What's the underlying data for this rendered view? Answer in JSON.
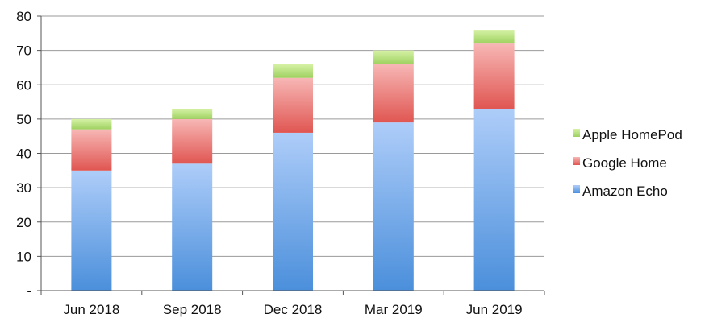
{
  "chart_data": {
    "type": "bar",
    "stacked": true,
    "categories": [
      "Jun 2018",
      "Sep 2018",
      "Dec 2018",
      "Mar 2019",
      "Jun 2019"
    ],
    "series": [
      {
        "name": "Amazon Echo",
        "values": [
          35,
          37,
          46,
          49,
          53
        ],
        "color_top": "#aecdf9",
        "color_bottom": "#4b8fdb"
      },
      {
        "name": "Google Home",
        "values": [
          12,
          13,
          16,
          17,
          19
        ],
        "color_top": "#f7b7b5",
        "color_bottom": "#e05652"
      },
      {
        "name": "Apple HomePod",
        "values": [
          3,
          3,
          4,
          4,
          4
        ],
        "color_top": "#d6f2a6",
        "color_bottom": "#9ed160"
      }
    ],
    "ylim": [
      0,
      80
    ],
    "yticks": [
      0,
      10,
      20,
      30,
      40,
      50,
      60,
      70,
      80
    ],
    "ytick_labels": [
      "-",
      "10",
      "20",
      "30",
      "40",
      "50",
      "60",
      "70",
      "80"
    ],
    "grid": true,
    "legend_position": "right",
    "legend_order": [
      "Apple HomePod",
      "Google Home",
      "Amazon Echo"
    ],
    "title": "",
    "xlabel": "",
    "ylabel": ""
  }
}
